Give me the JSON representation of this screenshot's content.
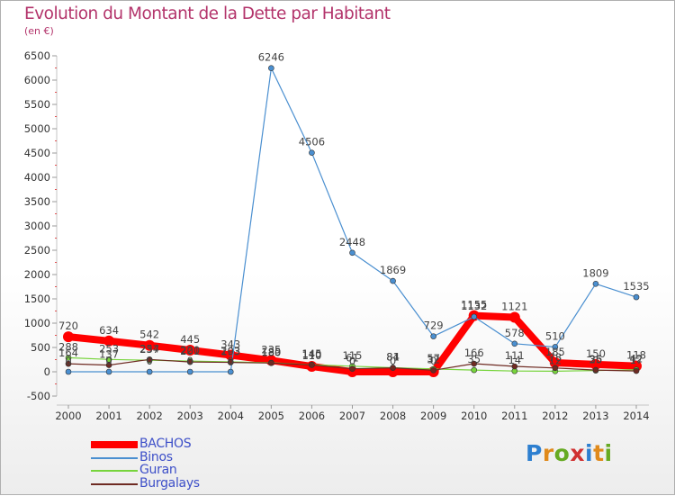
{
  "title": "Evolution du Montant de la Dette par Habitant",
  "subtitle": "(en €)",
  "logo": {
    "text": "Proxiti",
    "letter_colors": [
      "#2d7fd0",
      "#e08a1c",
      "#66aa22",
      "#d03030",
      "#2d7fd0",
      "#e08a1c",
      "#66aa22"
    ]
  },
  "chart_data": {
    "type": "line",
    "title": "Evolution du Montant de la Dette par Habitant",
    "subtitle": "(en €)",
    "xlabel": "",
    "ylabel": "",
    "x": [
      "2000",
      "2001",
      "2002",
      "2003",
      "2004",
      "2005",
      "2006",
      "2007",
      "2008",
      "2009",
      "2010",
      "2011",
      "2012",
      "2013",
      "2014"
    ],
    "ylim": [
      -500,
      6500
    ],
    "yticks": [
      "-500",
      "0",
      "500",
      "1000",
      "1500",
      "2000",
      "2500",
      "3000",
      "3500",
      "4000",
      "4500",
      "5000",
      "5500",
      "6000",
      "6500"
    ],
    "grid": false,
    "legend_position": "bottom-left",
    "series": [
      {
        "name": "BACHOS",
        "color": "#ff0000",
        "emphasis": true,
        "values": [
          720,
          634,
          542,
          445,
          343,
          235,
          110,
          0,
          0,
          0,
          1155,
          1121,
          185,
          150,
          118
        ],
        "labels": [
          "720",
          "634",
          "542",
          "445",
          "343",
          "235",
          "110",
          "0",
          "0",
          "0",
          "1155",
          "1121",
          "185",
          "150",
          "118"
        ]
      },
      {
        "name": "Binos",
        "color": "#4a8fd0",
        "emphasis": false,
        "values": [
          0,
          0,
          0,
          0,
          0,
          6246,
          4506,
          2448,
          1869,
          729,
          1132,
          578,
          510,
          1809,
          1535
        ],
        "labels": [
          "0",
          "0",
          "0",
          "0",
          "0",
          "6246",
          "4506",
          "2448",
          "1869",
          "729",
          "1132",
          "578",
          "510",
          "1809",
          "1535"
        ]
      },
      {
        "name": "Guran",
        "color": "#77d43c",
        "emphasis": false,
        "values": [
          288,
          253,
          237,
          220,
          203,
          185,
          145,
          115,
          84,
          57,
          35,
          14,
          12,
          25,
          42
        ],
        "labels": [
          "288",
          "253",
          "237",
          "220",
          "203",
          "185",
          "145",
          "115",
          "84",
          "57",
          "35",
          "14",
          "12",
          "25",
          "42"
        ]
      },
      {
        "name": "Burgalays",
        "color": "#6e2a22",
        "emphasis": false,
        "values": [
          164,
          137,
          254,
          201,
          193,
          180,
          140,
          61,
          81,
          32,
          166,
          111,
          78,
          36,
          17
        ],
        "labels": [
          "164",
          "137",
          "254",
          "201",
          "193",
          "180",
          "140",
          "61",
          "81",
          "32",
          "166",
          "111",
          "78",
          "36",
          "17"
        ]
      }
    ]
  }
}
